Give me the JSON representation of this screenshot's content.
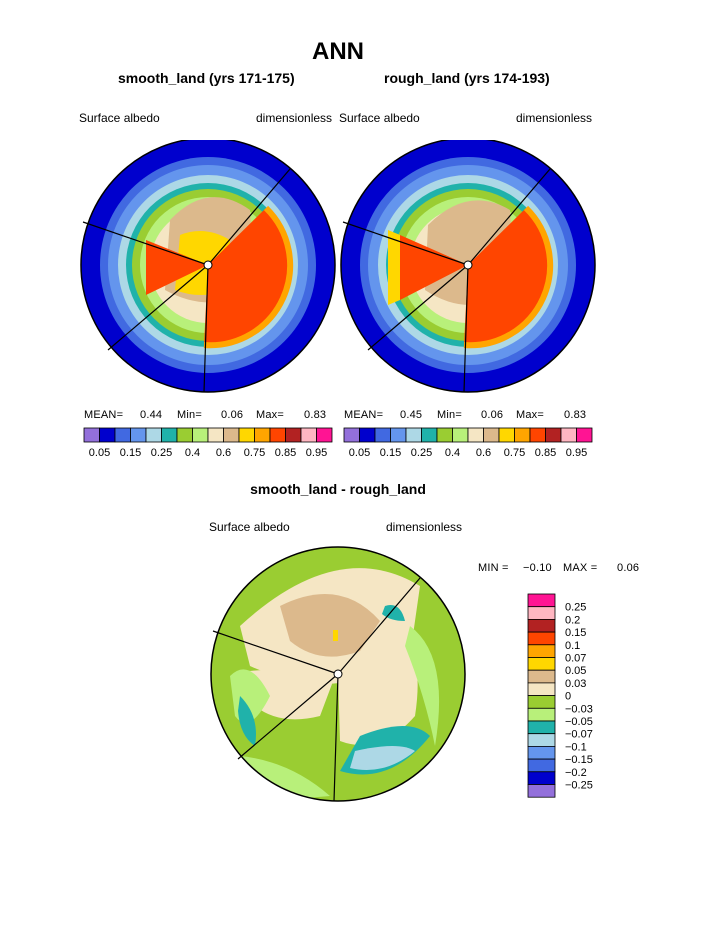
{
  "figure": {
    "title": "ANN"
  },
  "colors": {
    "scale": [
      "#9370db",
      "#0000cd",
      "#4169e1",
      "#6495ed",
      "#add8e6",
      "#20b2aa",
      "#9acd32",
      "#b8f07a",
      "#f5e6c4",
      "#dcb98c",
      "#ffd700",
      "#ffa500",
      "#ff4500",
      "#b22222",
      "#ffb6c1",
      "#ff1493"
    ],
    "diff": [
      "#9370db",
      "#0000cd",
      "#4169e1",
      "#6495ed",
      "#add8e6",
      "#20b2aa",
      "#b8f07a",
      "#9acd32",
      "#f5e6c4",
      "#dcb98c",
      "#ffd700",
      "#ffa500",
      "#ff4500",
      "#b22222",
      "#ffb6c1",
      "#ff1493"
    ]
  },
  "chart_data": [
    {
      "type": "heatmap",
      "title": "smooth_land (yrs 171-175)",
      "left_label": "Surface albedo",
      "right_label": "dimensionless",
      "stats": {
        "mean_label": "MEAN=",
        "mean": "0.44",
        "min_label": "Min=",
        "min": "0.06",
        "max_label": "Max=",
        "max": "0.83"
      },
      "colorbar_ticks": [
        "0.05",
        "0.15",
        "0.25",
        "0.4",
        "0.6",
        "0.75",
        "0.85",
        "0.95"
      ],
      "levels": [
        0.05,
        0.1,
        0.15,
        0.2,
        0.25,
        0.3,
        0.4,
        0.5,
        0.6,
        0.7,
        0.75,
        0.8,
        0.85,
        0.9,
        0.95
      ]
    },
    {
      "type": "heatmap",
      "title": "rough_land (yrs 174-193)",
      "left_label": "Surface albedo",
      "right_label": "dimensionless",
      "stats": {
        "mean_label": "MEAN=",
        "mean": "0.45",
        "min_label": "Min=",
        "min": "0.06",
        "max_label": "Max=",
        "max": "0.83"
      },
      "colorbar_ticks": [
        "0.05",
        "0.15",
        "0.25",
        "0.4",
        "0.6",
        "0.75",
        "0.85",
        "0.95"
      ],
      "levels": [
        0.05,
        0.1,
        0.15,
        0.2,
        0.25,
        0.3,
        0.4,
        0.5,
        0.6,
        0.7,
        0.75,
        0.8,
        0.85,
        0.9,
        0.95
      ]
    },
    {
      "type": "heatmap",
      "title": "smooth_land - rough_land",
      "left_label": "Surface albedo",
      "right_label": "dimensionless",
      "stats": {
        "min_label": "MIN =",
        "min": "−0.10",
        "max_label": "MAX =",
        "max": "0.06"
      },
      "colorbar_ticks": [
        "0.25",
        "0.2",
        "0.15",
        "0.1",
        "0.07",
        "0.05",
        "0.03",
        "0",
        "−0.03",
        "−0.05",
        "−0.07",
        "−0.1",
        "−0.15",
        "−0.2",
        "−0.25"
      ]
    }
  ]
}
